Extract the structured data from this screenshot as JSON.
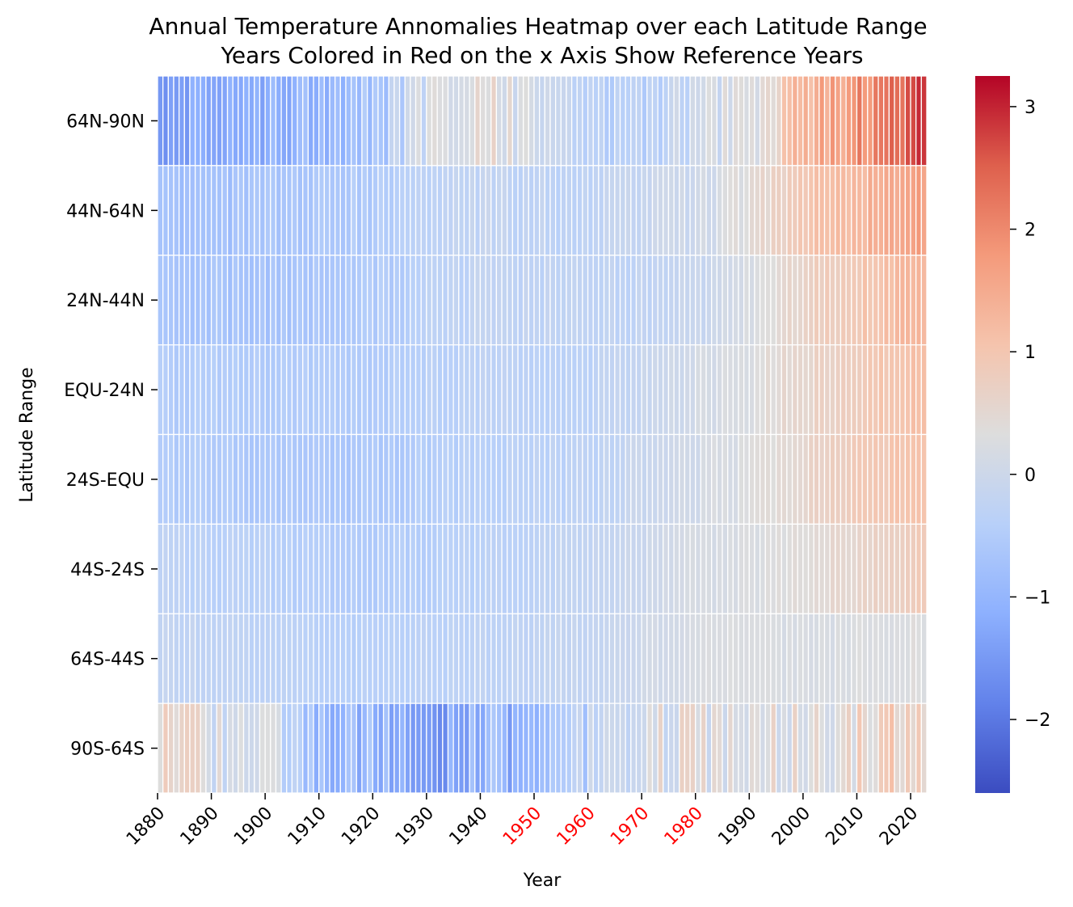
{
  "chart_data": {
    "type": "heatmap",
    "title_lines": [
      "Annual Temperature Annomalies Heatmap over each Latitude Range",
      "Years Colored in Red on the x Axis Show Reference Years"
    ],
    "xlabel": "Year",
    "ylabel": "Latitude Range",
    "rows": [
      "64N-90N",
      "44N-64N",
      "24N-44N",
      "EQU-24N",
      "24S-EQU",
      "44S-24S",
      "64S-44S",
      "90S-64S"
    ],
    "x_start": 1880,
    "x_end": 2022,
    "x_ticks": [
      1880,
      1890,
      1900,
      1910,
      1920,
      1930,
      1940,
      1950,
      1960,
      1970,
      1980,
      1990,
      2000,
      2010,
      2020
    ],
    "x_tick_labels": [
      "1880",
      "1890",
      "1900",
      "1910",
      "1920",
      "1930",
      "1940",
      "1950",
      "1960",
      "1970",
      "1980",
      "1990",
      "2000",
      "2010",
      "2020"
    ],
    "reference_years": [
      1950,
      1960,
      1970,
      1980
    ],
    "reference_color": "#ff0000",
    "colorbar": {
      "min": -2.6,
      "max": 3.25,
      "ticks": [
        -2,
        -1,
        0,
        1,
        2,
        3
      ],
      "tick_labels": [
        "−2",
        "−1",
        "0",
        "1",
        "2",
        "3"
      ],
      "colormap": "coolwarm"
    },
    "row_trends": {
      "64N-90N": {
        "knots": [
          [
            1880,
            -1.4
          ],
          [
            1890,
            -1.3
          ],
          [
            1903,
            -1.0
          ],
          [
            1920,
            -0.7
          ],
          [
            1930,
            0.1
          ],
          [
            1940,
            0.6
          ],
          [
            1950,
            0.0
          ],
          [
            1960,
            -0.3
          ],
          [
            1970,
            -0.3
          ],
          [
            1980,
            0.0
          ],
          [
            1990,
            0.3
          ],
          [
            2000,
            1.3
          ],
          [
            2010,
            1.9
          ],
          [
            2015,
            2.2
          ],
          [
            2020,
            2.7
          ]
        ],
        "noise": 0.35
      },
      "44N-64N": {
        "knots": [
          [
            1880,
            -0.8
          ],
          [
            1900,
            -0.7
          ],
          [
            1920,
            -0.5
          ],
          [
            1940,
            -0.2
          ],
          [
            1960,
            -0.3
          ],
          [
            1980,
            0.0
          ],
          [
            1990,
            0.4
          ],
          [
            2000,
            1.0
          ],
          [
            2010,
            1.3
          ],
          [
            2020,
            1.7
          ]
        ],
        "noise": 0.15
      },
      "24N-44N": {
        "knots": [
          [
            1880,
            -0.7
          ],
          [
            1900,
            -0.7
          ],
          [
            1920,
            -0.55
          ],
          [
            1940,
            -0.2
          ],
          [
            1960,
            -0.3
          ],
          [
            1980,
            -0.1
          ],
          [
            1990,
            0.2
          ],
          [
            2000,
            0.7
          ],
          [
            2010,
            1.0
          ],
          [
            2020,
            1.3
          ]
        ],
        "noise": 0.12
      },
      "EQU-24N": {
        "knots": [
          [
            1880,
            -0.5
          ],
          [
            1900,
            -0.5
          ],
          [
            1920,
            -0.5
          ],
          [
            1940,
            -0.3
          ],
          [
            1960,
            -0.3
          ],
          [
            1980,
            0.1
          ],
          [
            1990,
            0.3
          ],
          [
            2000,
            0.6
          ],
          [
            2010,
            0.9
          ],
          [
            2020,
            1.1
          ]
        ],
        "noise": 0.1
      },
      "24S-EQU": {
        "knots": [
          [
            1880,
            -0.5
          ],
          [
            1900,
            -0.6
          ],
          [
            1920,
            -0.6
          ],
          [
            1940,
            -0.35
          ],
          [
            1960,
            -0.3
          ],
          [
            1980,
            0.1
          ],
          [
            1990,
            0.3
          ],
          [
            2000,
            0.6
          ],
          [
            2010,
            0.85
          ],
          [
            2020,
            1.1
          ]
        ],
        "noise": 0.1
      },
      "44S-24S": {
        "knots": [
          [
            1880,
            -0.3
          ],
          [
            1900,
            -0.4
          ],
          [
            1920,
            -0.5
          ],
          [
            1940,
            -0.35
          ],
          [
            1960,
            -0.2
          ],
          [
            1980,
            0.15
          ],
          [
            1990,
            0.25
          ],
          [
            2000,
            0.4
          ],
          [
            2010,
            0.6
          ],
          [
            2020,
            0.85
          ]
        ],
        "noise": 0.08
      },
      "64S-44S": {
        "knots": [
          [
            1880,
            -0.2
          ],
          [
            1900,
            -0.3
          ],
          [
            1920,
            -0.4
          ],
          [
            1940,
            -0.3
          ],
          [
            1960,
            -0.15
          ],
          [
            1980,
            0.2
          ],
          [
            1990,
            0.25
          ],
          [
            2000,
            0.2
          ],
          [
            2010,
            0.25
          ],
          [
            2020,
            0.3
          ]
        ],
        "noise": 0.08
      },
      "90S-64S": {
        "knots": [
          [
            1880,
            0.6
          ],
          [
            1890,
            0.2
          ],
          [
            1900,
            0.0
          ],
          [
            1910,
            -1.0
          ],
          [
            1920,
            -0.9
          ],
          [
            1930,
            -1.6
          ],
          [
            1940,
            -1.0
          ],
          [
            1950,
            -1.2
          ],
          [
            1960,
            -0.4
          ],
          [
            1970,
            0.2
          ],
          [
            1980,
            0.3
          ],
          [
            1990,
            0.3
          ],
          [
            2000,
            0.4
          ],
          [
            2010,
            0.6
          ],
          [
            2020,
            0.8
          ]
        ],
        "noise": 0.45
      }
    }
  }
}
